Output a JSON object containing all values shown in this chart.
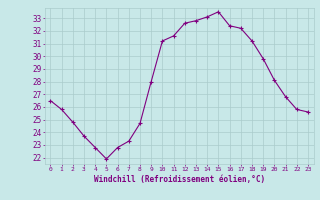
{
  "x": [
    0,
    1,
    2,
    3,
    4,
    5,
    6,
    7,
    8,
    9,
    10,
    11,
    12,
    13,
    14,
    15,
    16,
    17,
    18,
    19,
    20,
    21,
    22,
    23
  ],
  "y": [
    26.5,
    25.8,
    24.8,
    23.7,
    22.8,
    21.9,
    22.8,
    23.3,
    24.7,
    28.0,
    31.2,
    31.6,
    32.6,
    32.8,
    33.1,
    33.5,
    32.4,
    32.2,
    31.2,
    29.8,
    28.1,
    26.8,
    25.8,
    25.6
  ],
  "line_color": "#800080",
  "marker": "+",
  "bg_color": "#c8e8e8",
  "grid_color": "#aacccc",
  "xlabel": "Windchill (Refroidissement éolien,°C)",
  "ylabel_ticks": [
    22,
    23,
    24,
    25,
    26,
    27,
    28,
    29,
    30,
    31,
    32,
    33
  ],
  "ylim": [
    21.5,
    33.8
  ],
  "xlim": [
    -0.5,
    23.5
  ],
  "xlabel_color": "#800080",
  "tick_color": "#800080",
  "font": "monospace"
}
